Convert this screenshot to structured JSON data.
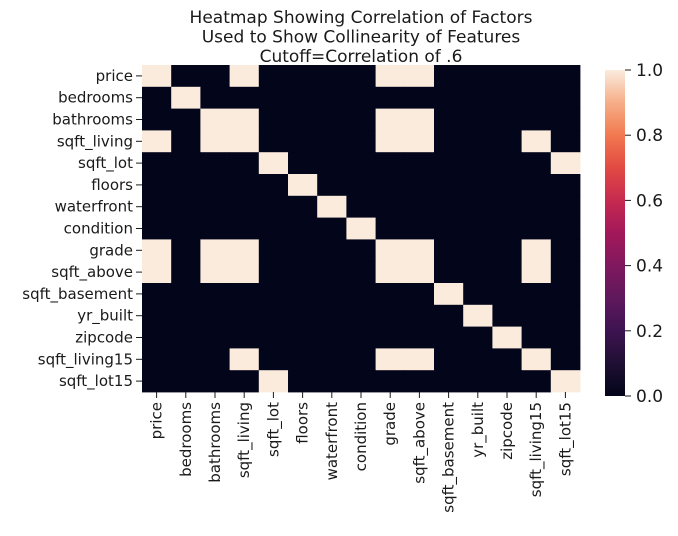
{
  "chart_data": {
    "type": "heatmap",
    "title_lines": [
      "Heatmap Showing Correlation of Factors",
      "Used to Show Collinearity of Features",
      "Cutoff=Correlation of .6"
    ],
    "xlabel": "",
    "ylabel": "",
    "rows": [
      "price",
      "bedrooms",
      "bathrooms",
      "sqft_living",
      "sqft_lot",
      "floors",
      "waterfront",
      "condition",
      "grade",
      "sqft_above",
      "sqft_basement",
      "yr_built",
      "zipcode",
      "sqft_living15",
      "sqft_lot15"
    ],
    "columns": [
      "price",
      "bedrooms",
      "bathrooms",
      "sqft_living",
      "sqft_lot",
      "floors",
      "waterfront",
      "condition",
      "grade",
      "sqft_above",
      "sqft_basement",
      "yr_built",
      "zipcode",
      "sqft_living15",
      "sqft_lot15"
    ],
    "values": [
      [
        1,
        0,
        0,
        1,
        0,
        0,
        0,
        0,
        1,
        1,
        0,
        0,
        0,
        0,
        0
      ],
      [
        0,
        1,
        0,
        0,
        0,
        0,
        0,
        0,
        0,
        0,
        0,
        0,
        0,
        0,
        0
      ],
      [
        0,
        0,
        1,
        1,
        0,
        0,
        0,
        0,
        1,
        1,
        0,
        0,
        0,
        0,
        0
      ],
      [
        1,
        0,
        1,
        1,
        0,
        0,
        0,
        0,
        1,
        1,
        0,
        0,
        0,
        1,
        0
      ],
      [
        0,
        0,
        0,
        0,
        1,
        0,
        0,
        0,
        0,
        0,
        0,
        0,
        0,
        0,
        1
      ],
      [
        0,
        0,
        0,
        0,
        0,
        1,
        0,
        0,
        0,
        0,
        0,
        0,
        0,
        0,
        0
      ],
      [
        0,
        0,
        0,
        0,
        0,
        0,
        1,
        0,
        0,
        0,
        0,
        0,
        0,
        0,
        0
      ],
      [
        0,
        0,
        0,
        0,
        0,
        0,
        0,
        1,
        0,
        0,
        0,
        0,
        0,
        0,
        0
      ],
      [
        1,
        0,
        1,
        1,
        0,
        0,
        0,
        0,
        1,
        1,
        0,
        0,
        0,
        1,
        0
      ],
      [
        1,
        0,
        1,
        1,
        0,
        0,
        0,
        0,
        1,
        1,
        0,
        0,
        0,
        1,
        0
      ],
      [
        0,
        0,
        0,
        0,
        0,
        0,
        0,
        0,
        0,
        0,
        1,
        0,
        0,
        0,
        0
      ],
      [
        0,
        0,
        0,
        0,
        0,
        0,
        0,
        0,
        0,
        0,
        0,
        1,
        0,
        0,
        0
      ],
      [
        0,
        0,
        0,
        0,
        0,
        0,
        0,
        0,
        0,
        0,
        0,
        0,
        1,
        0,
        0
      ],
      [
        0,
        0,
        0,
        1,
        0,
        0,
        0,
        0,
        1,
        1,
        0,
        0,
        0,
        1,
        0
      ],
      [
        0,
        0,
        0,
        0,
        1,
        0,
        0,
        0,
        0,
        0,
        0,
        0,
        0,
        0,
        1
      ]
    ],
    "vmin": 0.0,
    "vmax": 1.0,
    "colormap": "rocket",
    "colorbar_ticks": [
      "0.0",
      "0.2",
      "0.4",
      "0.6",
      "0.8",
      "1.0"
    ],
    "low_color": "#03051a",
    "high_color": "#faebdd",
    "grid": false,
    "legend": "colorbar-right"
  }
}
